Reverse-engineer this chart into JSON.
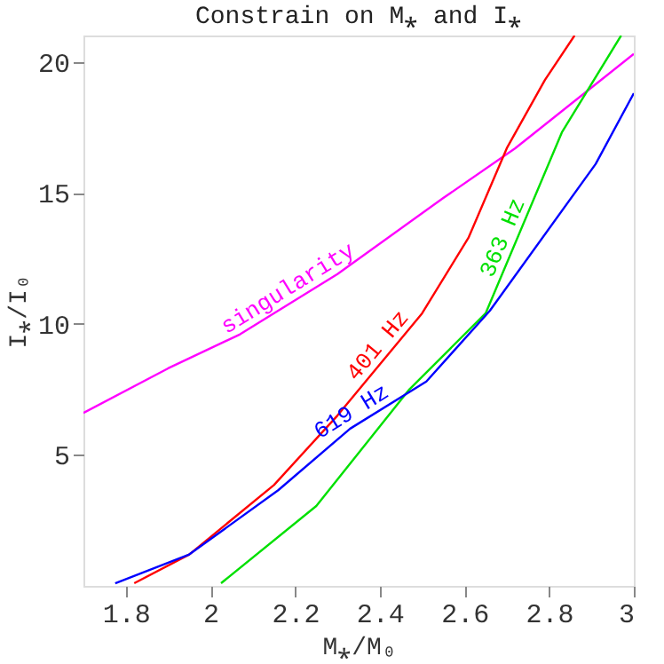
{
  "chart_data": {
    "type": "line",
    "title": "Constrain on M⁎ and I⁎",
    "xlabel": "M⁎/M₀",
    "ylabel": "I⁎/I₀",
    "xlim": [
      1.7,
      3
    ],
    "xticks": [
      1.8,
      {
        "value": 2,
        "label": "2"
      },
      2.2,
      2.4,
      2.6,
      2.8,
      {
        "value": 3,
        "label": "3"
      }
    ],
    "ylim": [
      0,
      21
    ],
    "yticks": [
      5,
      10,
      15,
      20
    ],
    "grid": false,
    "line_style": "solid",
    "marker": "none",
    "series": [
      {
        "color": "#ff00ff",
        "x": [
          1.7,
          1.9,
          2.07,
          2.3,
          2.55,
          2.72,
          3.0
        ],
        "values": [
          6.6,
          8.3,
          9.6,
          11.9,
          14.8,
          16.7,
          20.3
        ]
      },
      {
        "color": "#ff0000",
        "x": [
          1.82,
          1.95,
          2.15,
          2.3,
          2.5,
          2.61,
          2.7,
          2.79,
          2.86
        ],
        "values": [
          0.1,
          1.2,
          3.85,
          6.5,
          10.4,
          13.3,
          16.7,
          19.3,
          21
        ]
      },
      {
        "color": "#00e000",
        "x": [
          2.025,
          2.25,
          2.47,
          2.65,
          2.83,
          2.97
        ],
        "values": [
          0.1,
          3.05,
          7.5,
          10.4,
          17.3,
          21
        ]
      },
      {
        "color": "#0000ff",
        "x": [
          1.775,
          1.95,
          2.16,
          2.33,
          2.51,
          2.66,
          2.91,
          3.0
        ],
        "values": [
          0.1,
          1.2,
          3.65,
          6.0,
          7.8,
          10.5,
          16.1,
          18.8
        ]
      }
    ],
    "annotations": [
      {
        "text": "singularity",
        "x": 2.2,
        "y": 10.9
      },
      {
        "text": "401 Hz",
        "x": 2.42,
        "y": 8.84
      },
      {
        "text": "363 Hz",
        "x": 2.72,
        "y": 13.08
      },
      {
        "text": "619 Hz",
        "x": 2.35,
        "y": 6.2
      }
    ]
  }
}
